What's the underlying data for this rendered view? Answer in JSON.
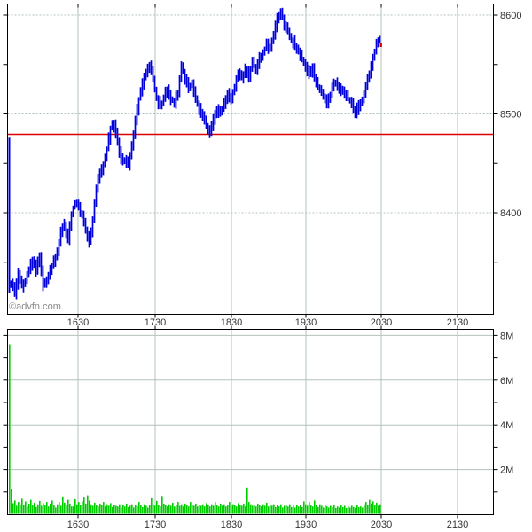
{
  "watermark": "©advfn.com",
  "colors": {
    "price_bars": "#0000dd",
    "volume_bars": "#00cc00",
    "reference_line": "#dd0000",
    "last_trade_marker": "#dd0000",
    "grid": "#b2c3ba",
    "border": "#000000",
    "tick_label": "#333333",
    "watermark": "#888888",
    "background": "#ffffff"
  },
  "chart_data": [
    {
      "type": "line",
      "title": "Intraday price (HLC minute bars)",
      "x_tick_labels": [
        "1630",
        "1730",
        "1830",
        "1930",
        "2030",
        "2130"
      ],
      "y_tick_labels": [
        "8600",
        "8500",
        "8400"
      ],
      "y_major_ticks": [
        8600,
        8500,
        8400
      ],
      "y_minor_ticks": [
        8550,
        8450,
        8350
      ],
      "ylim": [
        8297,
        8612
      ],
      "grid": true,
      "legend": "none",
      "reference_line_price": 8480,
      "opening_bar": {
        "high": 8476,
        "low": 8319
      },
      "last_trade_price": 8570,
      "start_time": "15:35",
      "end_time": "20:28",
      "sample_interval_minutes": 2.8,
      "prices": [
        8330,
        8318,
        8338,
        8326,
        8332,
        8344,
        8352,
        8342,
        8356,
        8326,
        8330,
        8344,
        8350,
        8360,
        8382,
        8388,
        8374,
        8398,
        8412,
        8406,
        8396,
        8382,
        8370,
        8392,
        8425,
        8442,
        8448,
        8465,
        8485,
        8490,
        8470,
        8455,
        8452,
        8448,
        8468,
        8495,
        8515,
        8530,
        8542,
        8548,
        8535,
        8515,
        8508,
        8516,
        8525,
        8515,
        8512,
        8522,
        8550,
        8535,
        8528,
        8530,
        8515,
        8505,
        8498,
        8488,
        8482,
        8495,
        8505,
        8500,
        8512,
        8522,
        8514,
        8528,
        8542,
        8536,
        8545,
        8538,
        8552,
        8546,
        8558,
        8562,
        8570,
        8565,
        8580,
        8595,
        8605,
        8590,
        8585,
        8575,
        8570,
        8562,
        8556,
        8548,
        8540,
        8545,
        8532,
        8524,
        8516,
        8512,
        8520,
        8532,
        8528,
        8524,
        8520,
        8515,
        8510,
        8502,
        8508,
        8516,
        8528,
        8540,
        8556,
        8572,
        8574
      ]
    },
    {
      "type": "bar",
      "title": "Volume",
      "x_tick_labels": [
        "1630",
        "1730",
        "1830",
        "1930",
        "2030",
        "2130"
      ],
      "y_tick_labels": [
        "8M",
        "6M",
        "4M",
        "2M"
      ],
      "y_major_ticks_millions": [
        8,
        6,
        4,
        2
      ],
      "y_minor_ticks_millions": [
        7,
        5,
        3,
        1
      ],
      "ylim_millions": [
        0,
        8.3
      ],
      "grid": true,
      "start_time": "15:35",
      "bar_interval_minutes": 1.4,
      "volumes_millions": [
        7.6,
        1.15,
        0.5,
        0.62,
        0.38,
        0.55,
        0.45,
        0.7,
        0.42,
        0.58,
        0.35,
        0.48,
        0.65,
        0.4,
        0.52,
        0.33,
        0.45,
        0.6,
        0.38,
        0.5,
        0.42,
        0.55,
        0.35,
        0.48,
        0.62,
        0.4,
        0.3,
        0.45,
        0.55,
        0.38,
        0.8,
        0.52,
        0.42,
        0.65,
        0.48,
        0.35,
        0.35,
        0.68,
        0.45,
        0.55,
        0.4,
        0.58,
        0.75,
        0.48,
        0.85,
        0.62,
        0.45,
        0.38,
        0.52,
        0.42,
        0.35,
        0.48,
        0.4,
        0.55,
        0.35,
        0.45,
        0.38,
        0.5,
        0.32,
        0.42,
        0.38,
        0.35,
        0.45,
        0.3,
        0.4,
        0.35,
        0.48,
        0.32,
        0.38,
        0.45,
        0.3,
        0.42,
        0.35,
        0.55,
        0.4,
        0.32,
        0.45,
        0.38,
        0.3,
        0.4,
        0.72,
        0.45,
        0.38,
        0.6,
        0.42,
        0.35,
        0.82,
        0.48,
        0.4,
        0.35,
        0.45,
        0.38,
        0.52,
        0.35,
        0.42,
        0.55,
        0.38,
        0.45,
        0.35,
        0.48,
        0.4,
        0.35,
        0.55,
        0.42,
        0.38,
        0.48,
        0.35,
        0.42,
        0.38,
        0.45,
        0.35,
        0.5,
        0.4,
        0.35,
        0.45,
        0.38,
        0.55,
        0.42,
        0.35,
        0.48,
        0.38,
        0.45,
        0.35,
        0.42,
        0.55,
        0.38,
        0.45,
        0.4,
        0.35,
        0.5,
        0.42,
        0.38,
        0.48,
        0.35,
        1.2,
        0.55,
        0.45,
        0.38,
        0.42,
        0.35,
        0.48,
        0.4,
        0.35,
        0.45,
        0.38,
        0.52,
        0.35,
        0.42,
        0.38,
        0.45,
        0.32,
        0.4,
        0.35,
        0.45,
        0.3,
        0.38,
        0.42,
        0.35,
        0.45,
        0.32,
        0.38,
        0.3,
        0.42,
        0.35,
        0.4,
        0.32,
        0.58,
        0.45,
        0.38,
        0.55,
        0.42,
        0.35,
        0.62,
        0.4,
        0.32,
        0.45,
        0.38,
        0.3,
        0.42,
        0.35,
        0.3,
        0.38,
        0.32,
        0.42,
        0.28,
        0.35,
        0.3,
        0.4,
        0.32,
        0.38,
        0.28,
        0.35,
        0.3,
        0.38,
        0.32,
        0.28,
        0.4,
        0.32,
        0.35,
        0.3,
        0.45,
        0.55,
        0.4,
        0.65,
        0.48,
        0.58,
        0.42,
        0.52,
        0.38,
        0.45
      ]
    }
  ]
}
